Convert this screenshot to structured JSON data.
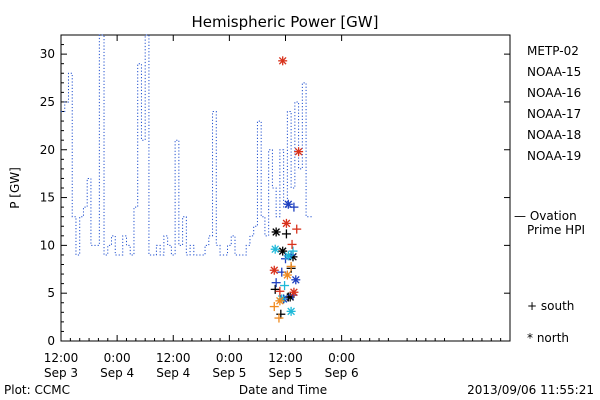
{
  "chart_data": {
    "type": "line",
    "title": "Hemispheric Power [GW]",
    "ylabel": "P [GW]",
    "xlabel": "Date and Time",
    "ylim": [
      0,
      32
    ],
    "yticks": [
      0,
      5,
      10,
      15,
      20,
      25,
      30
    ],
    "xlim_hours": [
      -12,
      36
    ],
    "xticks": [
      {
        "h": -12,
        "time": "12:00",
        "date": "Sep 3"
      },
      {
        "h": -6,
        "time": "0:00",
        "date": "Sep 4"
      },
      {
        "h": 0,
        "time": "12:00",
        "date": "Sep 4"
      },
      {
        "h": 6,
        "time": "0:00",
        "date": "Sep 5"
      },
      {
        "h": 12,
        "time": "12:00",
        "date": "Sep 5"
      },
      {
        "h": 18,
        "time": "0:00",
        "date": "Sep 6"
      }
    ],
    "ovation": {
      "name": "Ovation Prime HPI",
      "label_line1": "— Ovation",
      "label_line2": "Prime HPI",
      "color": "#1f4fcf",
      "points": [
        [
          -12.0,
          24
        ],
        [
          -11.6,
          25
        ],
        [
          -11.2,
          28
        ],
        [
          -10.8,
          13
        ],
        [
          -10.4,
          9
        ],
        [
          -10.0,
          13
        ],
        [
          -9.6,
          14
        ],
        [
          -9.2,
          17
        ],
        [
          -8.8,
          10
        ],
        [
          -8.4,
          10
        ],
        [
          -7.9,
          33
        ],
        [
          -7.4,
          9
        ],
        [
          -7.0,
          10
        ],
        [
          -6.6,
          11
        ],
        [
          -6.2,
          9
        ],
        [
          -5.8,
          9
        ],
        [
          -5.4,
          11
        ],
        [
          -5.0,
          10
        ],
        [
          -4.6,
          9
        ],
        [
          -4.2,
          14
        ],
        [
          -3.8,
          29
        ],
        [
          -3.4,
          21
        ],
        [
          -3.0,
          33
        ],
        [
          -2.6,
          9
        ],
        [
          -2.2,
          9
        ],
        [
          -1.8,
          10
        ],
        [
          -1.4,
          9
        ],
        [
          -1.0,
          11
        ],
        [
          -0.6,
          10
        ],
        [
          -0.2,
          9
        ],
        [
          0.2,
          21
        ],
        [
          0.6,
          10
        ],
        [
          1.0,
          13
        ],
        [
          1.4,
          9
        ],
        [
          1.8,
          10
        ],
        [
          2.2,
          9
        ],
        [
          2.6,
          9
        ],
        [
          3.0,
          9
        ],
        [
          3.4,
          10
        ],
        [
          3.8,
          11
        ],
        [
          4.2,
          24
        ],
        [
          4.6,
          10
        ],
        [
          5.0,
          9
        ],
        [
          5.4,
          9
        ],
        [
          5.8,
          10
        ],
        [
          6.2,
          11
        ],
        [
          6.6,
          9
        ],
        [
          7.0,
          9
        ],
        [
          7.4,
          9
        ],
        [
          7.8,
          10
        ],
        [
          8.2,
          11
        ],
        [
          8.6,
          12
        ],
        [
          9.0,
          23
        ],
        [
          9.4,
          13
        ],
        [
          9.8,
          11
        ],
        [
          10.2,
          20
        ],
        [
          10.6,
          16
        ],
        [
          11.0,
          13
        ],
        [
          11.4,
          20
        ],
        [
          11.8,
          14
        ],
        [
          12.2,
          24
        ],
        [
          12.6,
          16
        ],
        [
          13.0,
          25
        ],
        [
          13.4,
          18
        ],
        [
          13.8,
          27
        ],
        [
          14.2,
          13
        ],
        [
          14.6,
          13
        ]
      ]
    },
    "satellites": [
      {
        "name": "METP-02",
        "color": "#000000"
      },
      {
        "name": "NOAA-15",
        "color": "#1e3fbf"
      },
      {
        "name": "NOAA-16",
        "color": "#1fb9d9"
      },
      {
        "name": "NOAA-17",
        "color": "#3ad98a"
      },
      {
        "name": "NOAA-18",
        "color": "#f08a1e"
      },
      {
        "name": "NOAA-19",
        "color": "#d8321c"
      }
    ],
    "symbols_legend": {
      "south": "+ south",
      "north": "* north"
    },
    "observations": [
      {
        "sat": 0,
        "kind": "plus",
        "h": 10.9,
        "p": 5.4
      },
      {
        "sat": 0,
        "kind": "star",
        "h": 11.0,
        "p": 11.4
      },
      {
        "sat": 0,
        "kind": "plus",
        "h": 11.5,
        "p": 2.8
      },
      {
        "sat": 0,
        "kind": "star",
        "h": 11.7,
        "p": 9.4
      },
      {
        "sat": 0,
        "kind": "plus",
        "h": 12.1,
        "p": 11.2
      },
      {
        "sat": 0,
        "kind": "plus",
        "h": 12.3,
        "p": 4.6
      },
      {
        "sat": 0,
        "kind": "plus",
        "h": 12.6,
        "p": 7.6
      },
      {
        "sat": 0,
        "kind": "star",
        "h": 12.8,
        "p": 8.8
      },
      {
        "sat": 0,
        "kind": "star",
        "h": 12.5,
        "p": 4.6
      },
      {
        "sat": 1,
        "kind": "plus",
        "h": 11.0,
        "p": 6.1
      },
      {
        "sat": 1,
        "kind": "plus",
        "h": 11.6,
        "p": 7.2
      },
      {
        "sat": 1,
        "kind": "star",
        "h": 11.8,
        "p": 4.4
      },
      {
        "sat": 1,
        "kind": "plus",
        "h": 12.0,
        "p": 8.6
      },
      {
        "sat": 1,
        "kind": "star",
        "h": 12.3,
        "p": 14.3
      },
      {
        "sat": 1,
        "kind": "plus",
        "h": 12.6,
        "p": 9.0
      },
      {
        "sat": 1,
        "kind": "plus",
        "h": 12.9,
        "p": 14.0
      },
      {
        "sat": 1,
        "kind": "star",
        "h": 13.1,
        "p": 6.4
      },
      {
        "sat": 1,
        "kind": "plus",
        "h": 12.8,
        "p": 4.8
      },
      {
        "sat": 2,
        "kind": "star",
        "h": 10.9,
        "p": 9.6
      },
      {
        "sat": 2,
        "kind": "star",
        "h": 11.6,
        "p": 4.4
      },
      {
        "sat": 2,
        "kind": "plus",
        "h": 11.9,
        "p": 5.8
      },
      {
        "sat": 2,
        "kind": "star",
        "h": 12.3,
        "p": 8.9
      },
      {
        "sat": 2,
        "kind": "star",
        "h": 12.6,
        "p": 3.1
      },
      {
        "sat": 2,
        "kind": "plus",
        "h": 12.8,
        "p": 9.4
      },
      {
        "sat": 4,
        "kind": "plus",
        "h": 10.8,
        "p": 3.6
      },
      {
        "sat": 4,
        "kind": "plus",
        "h": 11.3,
        "p": 2.4
      },
      {
        "sat": 4,
        "kind": "star",
        "h": 11.4,
        "p": 4.2
      },
      {
        "sat": 4,
        "kind": "star",
        "h": 12.2,
        "p": 6.9
      },
      {
        "sat": 4,
        "kind": "plus",
        "h": 12.6,
        "p": 7.8
      },
      {
        "sat": 5,
        "kind": "star",
        "h": 10.8,
        "p": 7.4
      },
      {
        "sat": 5,
        "kind": "plus",
        "h": 11.4,
        "p": 5.2
      },
      {
        "sat": 5,
        "kind": "star",
        "h": 11.7,
        "p": 29.3
      },
      {
        "sat": 5,
        "kind": "star",
        "h": 12.1,
        "p": 12.3
      },
      {
        "sat": 5,
        "kind": "plus",
        "h": 12.7,
        "p": 10.1
      },
      {
        "sat": 5,
        "kind": "star",
        "h": 12.9,
        "p": 5.1
      },
      {
        "sat": 5,
        "kind": "plus",
        "h": 13.2,
        "p": 11.7
      },
      {
        "sat": 5,
        "kind": "star",
        "h": 13.4,
        "p": 19.8
      }
    ]
  },
  "footer": {
    "left": "Plot: CCMC",
    "right": "2013/09/06 11:55:21"
  }
}
